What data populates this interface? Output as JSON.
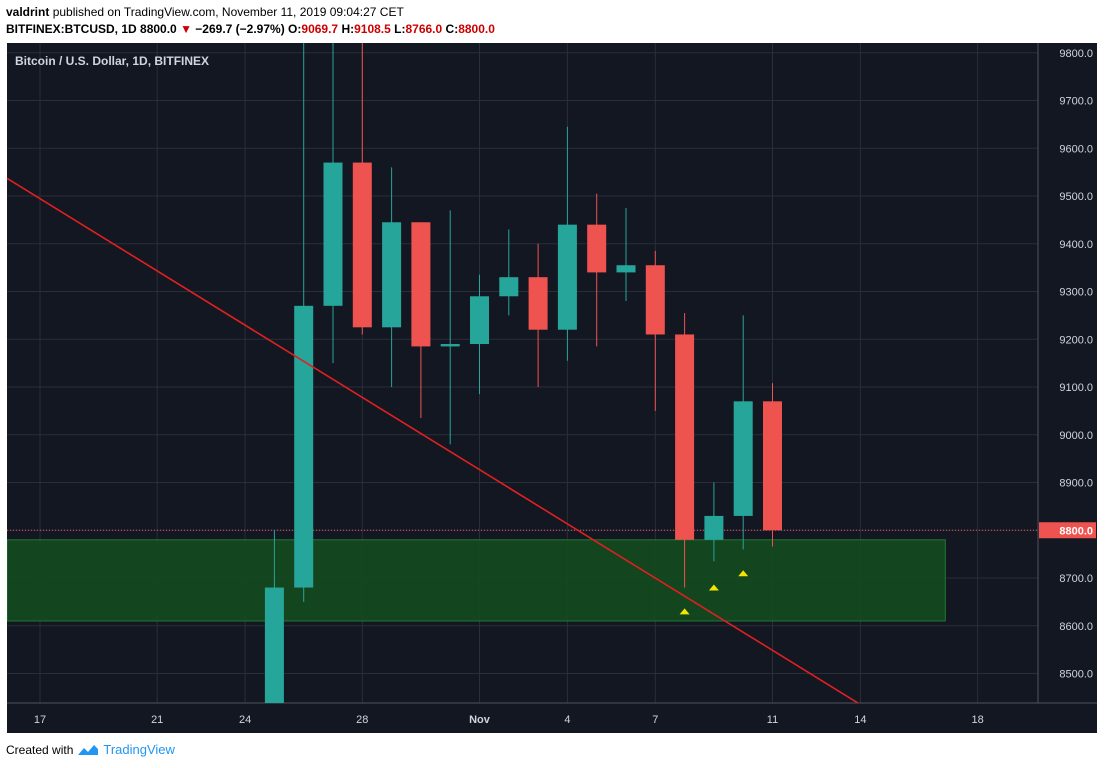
{
  "header": {
    "publisher": "valdrint",
    "published_text": "published on TradingView.com, November 11, 2019 09:04:27 CET",
    "symbol": "BITFINEX:BTCUSD, 1D",
    "last": "8800.0",
    "change": "−269.7 (−2.97%)",
    "o_label": "O:",
    "o": "9069.7",
    "h_label": "H:",
    "h": "9108.5",
    "l_label": "L:",
    "l": "8766.0",
    "c_label": "C:",
    "c": "8800.0"
  },
  "footer": {
    "created_with": "Created with",
    "brand": "TradingView"
  },
  "chart_data": {
    "type": "candlestick",
    "title": "Bitcoin / U.S. Dollar, 1D, BITFINEX",
    "y_ticks": [
      "8500.0",
      "8600.0",
      "8700.0",
      "8800.0",
      "8900.0",
      "9000.0",
      "9100.0",
      "9200.0",
      "9300.0",
      "9400.0",
      "9500.0",
      "9600.0",
      "9700.0",
      "9800.0"
    ],
    "x_ticks": [
      "17",
      "21",
      "24",
      "28",
      "Nov",
      "4",
      "7",
      "11",
      "14",
      "18"
    ],
    "ylim": [
      8435,
      9830
    ],
    "last_price_label": "8800.0",
    "colors": {
      "bg": "#131722",
      "grid": "#2a2e39",
      "up": "#26a69a",
      "down": "#ef5350",
      "trend": "#e02020",
      "zone": "#144a1f",
      "marker": "#f5e400"
    },
    "support_zone": {
      "from_date": "2019-10-17",
      "to_date": "2019-11-17",
      "low": 8610,
      "high": 8780
    },
    "trendline": {
      "start_date": "2019-10-17",
      "start_price": 9537,
      "end_date": "2019-11-14",
      "end_price": 8435
    },
    "markers": [
      {
        "date": "2019-11-08",
        "price": 8630
      },
      {
        "date": "2019-11-09",
        "price": 8680
      },
      {
        "date": "2019-11-10",
        "price": 8710
      }
    ],
    "candles": [
      {
        "date": "2019-10-25",
        "o": 8680,
        "h": 8800,
        "l": 8410,
        "c": 8430,
        "color": "up"
      },
      {
        "date": "2019-10-26",
        "o": 8680,
        "h": 10300,
        "l": 8650,
        "c": 9270,
        "color": "up"
      },
      {
        "date": "2019-10-27",
        "o": 9270,
        "h": 9830,
        "l": 9150,
        "c": 9570,
        "color": "up"
      },
      {
        "date": "2019-10-28",
        "o": 9570,
        "h": 9830,
        "l": 9210,
        "c": 9225,
        "color": "down"
      },
      {
        "date": "2019-10-29",
        "o": 9225,
        "h": 9560,
        "l": 9100,
        "c": 9445,
        "color": "up"
      },
      {
        "date": "2019-10-30",
        "o": 9445,
        "h": 9445,
        "l": 9035,
        "c": 9185,
        "color": "down"
      },
      {
        "date": "2019-10-31",
        "o": 9185,
        "h": 9470,
        "l": 8980,
        "c": 9190,
        "color": "up"
      },
      {
        "date": "2019-11-01",
        "o": 9190,
        "h": 9335,
        "l": 9085,
        "c": 9290,
        "color": "up"
      },
      {
        "date": "2019-11-02",
        "o": 9290,
        "h": 9430,
        "l": 9250,
        "c": 9330,
        "color": "up"
      },
      {
        "date": "2019-11-03",
        "o": 9330,
        "h": 9400,
        "l": 9100,
        "c": 9220,
        "color": "down"
      },
      {
        "date": "2019-11-04",
        "o": 9220,
        "h": 9645,
        "l": 9155,
        "c": 9440,
        "color": "up"
      },
      {
        "date": "2019-11-05",
        "o": 9440,
        "h": 9505,
        "l": 9185,
        "c": 9340,
        "color": "down"
      },
      {
        "date": "2019-11-06",
        "o": 9340,
        "h": 9475,
        "l": 9280,
        "c": 9355,
        "color": "up"
      },
      {
        "date": "2019-11-07",
        "o": 9355,
        "h": 9385,
        "l": 9050,
        "c": 9210,
        "color": "down"
      },
      {
        "date": "2019-11-08",
        "o": 9210,
        "h": 9255,
        "l": 8680,
        "c": 8780,
        "color": "down"
      },
      {
        "date": "2019-11-09",
        "o": 8780,
        "h": 8900,
        "l": 8735,
        "c": 8830,
        "color": "up"
      },
      {
        "date": "2019-11-10",
        "o": 8830,
        "h": 9250,
        "l": 8760,
        "c": 9070,
        "color": "up"
      },
      {
        "date": "2019-11-11",
        "o": 9070,
        "h": 9108,
        "l": 8766,
        "c": 8800,
        "color": "down"
      }
    ]
  }
}
